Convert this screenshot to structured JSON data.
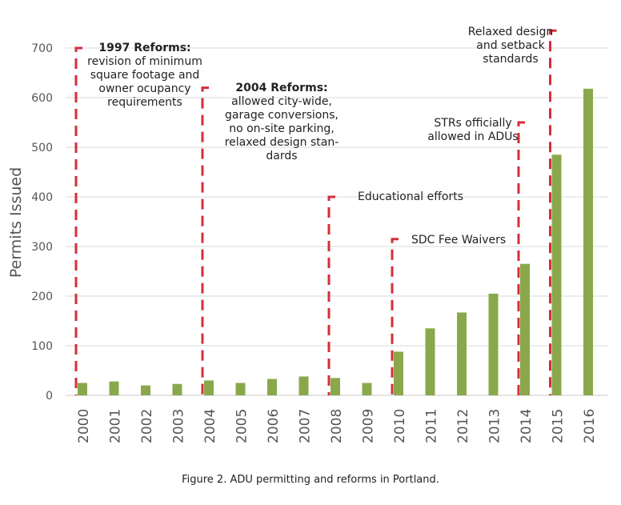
{
  "chart_data": {
    "type": "bar",
    "title": "",
    "xlabel": "",
    "ylabel": "Permits Issued",
    "ylim": [
      0,
      700
    ],
    "yticks": [
      0,
      100,
      200,
      300,
      400,
      500,
      600,
      700
    ],
    "grid": true,
    "legend": "none",
    "categories": [
      "2000",
      "2001",
      "2002",
      "2003",
      "2004",
      "2005",
      "2006",
      "2007",
      "2008",
      "2009",
      "2010",
      "2011",
      "2012",
      "2013",
      "2014",
      "2015",
      "2016"
    ],
    "values": [
      25,
      28,
      20,
      23,
      30,
      25,
      33,
      38,
      35,
      25,
      88,
      135,
      167,
      205,
      265,
      485,
      618
    ],
    "bar_color": "#8aa84b",
    "annotation_color": "#d62d3a",
    "annotations": [
      {
        "year": "2000",
        "top": 700,
        "bold": "1997 Reforms:",
        "lines": [
          "revision of minimum",
          "square footage and",
          "owner ocupancy",
          "requirements"
        ]
      },
      {
        "year": "2004",
        "top": 620,
        "bold": "2004 Reforms:",
        "lines": [
          "allowed city-wide,",
          "garage conversions,",
          "no on-site parking,",
          "relaxed design stan-",
          "dards"
        ]
      },
      {
        "year": "2008",
        "top": 400,
        "bold": "",
        "lines": [
          "Educational efforts"
        ]
      },
      {
        "year": "2010",
        "top": 315,
        "bold": "",
        "lines": [
          "SDC Fee Waivers"
        ]
      },
      {
        "year": "2014",
        "top": 550,
        "bold": "",
        "lines": [
          "STRs officially",
          "allowed in ADUs"
        ]
      },
      {
        "year": "2015",
        "top": 735,
        "bold": "",
        "lines": [
          "Relaxed design",
          "and setback",
          "standards"
        ]
      }
    ]
  },
  "caption": "Figure 2. ADU permitting and reforms in Portland."
}
